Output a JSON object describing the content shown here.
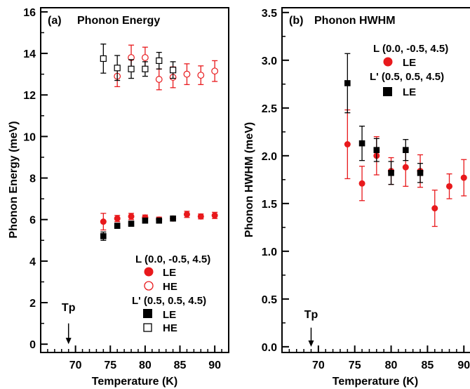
{
  "chart_data": [
    {
      "type": "scatter",
      "panel_label": "(a)",
      "title": "Phonon Energy",
      "xlabel": "Temperature (K)",
      "ylabel": "Phonon Energy (meV)",
      "xlim": [
        65,
        92
      ],
      "ylim": [
        -0.4,
        16.2
      ],
      "xticks": [
        70,
        75,
        80,
        85,
        90
      ],
      "yticks": [
        0,
        2,
        4,
        6,
        8,
        10,
        12,
        14,
        16
      ],
      "annotation": {
        "text": "Tp",
        "x": 69,
        "y_text": 1.6,
        "arrow_from": 1.0,
        "arrow_to": 0.0
      },
      "legend": {
        "placement": "bottom-right",
        "groups": [
          {
            "header": "L (0.0, -0.5, 4.5)",
            "entries": [
              "LE",
              "HE"
            ]
          },
          {
            "header": "L' (0.5,  0.5, 4.5)",
            "entries": [
              "LE",
              "HE"
            ]
          }
        ]
      },
      "series": [
        {
          "name": "LE",
          "group": "L (0.0, -0.5, 4.5)",
          "marker": "circle",
          "filled": true,
          "color": "#e8191c",
          "points": [
            {
              "x": 74,
              "y": 5.9,
              "err": 0.4
            },
            {
              "x": 76,
              "y": 6.05,
              "err": 0.15
            },
            {
              "x": 78,
              "y": 6.15,
              "err": 0.15
            },
            {
              "x": 80,
              "y": 6.1,
              "err": 0.12
            },
            {
              "x": 82,
              "y": 6.0,
              "err": 0.12
            },
            {
              "x": 84,
              "y": 6.05,
              "err": 0.1
            },
            {
              "x": 86,
              "y": 6.25,
              "err": 0.15
            },
            {
              "x": 88,
              "y": 6.15,
              "err": 0.12
            },
            {
              "x": 90,
              "y": 6.2,
              "err": 0.15
            }
          ]
        },
        {
          "name": "HE",
          "group": "L (0.0, -0.5, 4.5)",
          "marker": "circle",
          "filled": false,
          "color": "#e8191c",
          "points": [
            {
              "x": 76,
              "y": 12.9,
              "err": 0.5
            },
            {
              "x": 78,
              "y": 13.8,
              "err": 0.6
            },
            {
              "x": 80,
              "y": 13.8,
              "err": 0.5
            },
            {
              "x": 82,
              "y": 12.75,
              "err": 0.5
            },
            {
              "x": 84,
              "y": 12.85,
              "err": 0.5
            },
            {
              "x": 86,
              "y": 13.0,
              "err": 0.5
            },
            {
              "x": 88,
              "y": 12.95,
              "err": 0.45
            },
            {
              "x": 90,
              "y": 13.15,
              "err": 0.5
            }
          ]
        },
        {
          "name": "LE",
          "group": "L' (0.5,  0.5, 4.5)",
          "marker": "square",
          "filled": true,
          "color": "#000000",
          "points": [
            {
              "x": 74,
              "y": 5.2,
              "err": 0.2
            },
            {
              "x": 76,
              "y": 5.7,
              "err": 0.12
            },
            {
              "x": 78,
              "y": 5.8,
              "err": 0.12
            },
            {
              "x": 80,
              "y": 5.95,
              "err": 0.12
            },
            {
              "x": 82,
              "y": 5.95,
              "err": 0.12
            },
            {
              "x": 84,
              "y": 6.05,
              "err": 0.1
            }
          ]
        },
        {
          "name": "HE",
          "group": "L' (0.5,  0.5, 4.5)",
          "marker": "square",
          "filled": false,
          "color": "#000000",
          "points": [
            {
              "x": 74,
              "y": 13.75,
              "err": 0.7
            },
            {
              "x": 76,
              "y": 13.3,
              "err": 0.6
            },
            {
              "x": 78,
              "y": 13.25,
              "err": 0.45
            },
            {
              "x": 80,
              "y": 13.25,
              "err": 0.35
            },
            {
              "x": 82,
              "y": 13.65,
              "err": 0.4
            },
            {
              "x": 84,
              "y": 13.2,
              "err": 0.4
            }
          ]
        }
      ]
    },
    {
      "type": "scatter",
      "panel_label": "(b)",
      "title": "Phonon HWHM",
      "xlabel": "Temperature (K)",
      "ylabel": "Phonon HWHM (meV)",
      "xlim": [
        65,
        92
      ],
      "ylim": [
        -0.06,
        3.55
      ],
      "xticks": [
        70,
        75,
        80,
        85,
        90
      ],
      "yticks": [
        0.0,
        0.5,
        1.0,
        1.5,
        2.0,
        2.5,
        3.0,
        3.5
      ],
      "annotation": {
        "text": "Tp",
        "x": 69,
        "y_text": 0.3,
        "arrow_from": 0.2,
        "arrow_to": 0.0
      },
      "legend": {
        "placement": "top-right",
        "groups": [
          {
            "header": "L (0.0, -0.5, 4.5)",
            "entries": [
              "LE"
            ]
          },
          {
            "header": "L' (0.5,  0.5, 4.5)",
            "entries": [
              "LE"
            ]
          }
        ]
      },
      "series": [
        {
          "name": "LE",
          "group": "L (0.0, -0.5, 4.5)",
          "marker": "circle",
          "filled": true,
          "color": "#e8191c",
          "points": [
            {
              "x": 74,
              "y": 2.12,
              "err": 0.36
            },
            {
              "x": 76,
              "y": 1.71,
              "err": 0.18
            },
            {
              "x": 78,
              "y": 2.0,
              "err": 0.2
            },
            {
              "x": 80,
              "y": 1.84,
              "err": 0.14
            },
            {
              "x": 82,
              "y": 1.88,
              "err": 0.2
            },
            {
              "x": 84,
              "y": 1.84,
              "err": 0.17
            },
            {
              "x": 86,
              "y": 1.45,
              "err": 0.19
            },
            {
              "x": 88,
              "y": 1.68,
              "err": 0.13
            },
            {
              "x": 90,
              "y": 1.77,
              "err": 0.19
            }
          ]
        },
        {
          "name": "LE",
          "group": "L' (0.5,  0.5, 4.5)",
          "marker": "square",
          "filled": true,
          "color": "#000000",
          "points": [
            {
              "x": 74,
              "y": 2.76,
              "err": 0.31
            },
            {
              "x": 76,
              "y": 2.13,
              "err": 0.18
            },
            {
              "x": 78,
              "y": 2.06,
              "err": 0.12
            },
            {
              "x": 80,
              "y": 1.82,
              "err": 0.12
            },
            {
              "x": 82,
              "y": 2.06,
              "err": 0.11
            },
            {
              "x": 84,
              "y": 1.82,
              "err": 0.1
            }
          ]
        }
      ]
    }
  ]
}
